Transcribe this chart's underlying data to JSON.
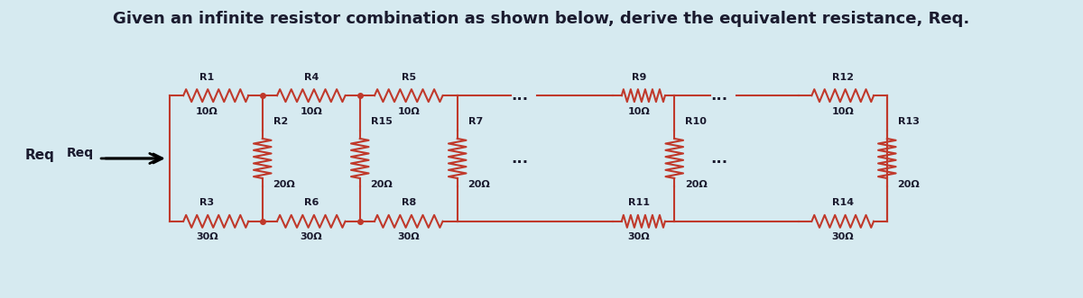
{
  "title": "Given an infinite resistor combination as shown below, derive the equivalent resistance, Req.",
  "title_fontsize": 13,
  "bg_color": "#d6eaf0",
  "wire_color": "#c0392b",
  "wire_color2": "#8b0000",
  "label_color": "#1a1a2e",
  "resistor_color": "#1a1a2e",
  "dots_color": "#1a1a2e",
  "figsize": [
    12.0,
    3.31
  ],
  "dpi": 100,
  "sections": [
    {
      "label_top": "R1",
      "val_top": "10Ω",
      "label_mid": "R2",
      "val_mid": "20Ω",
      "label_bot": "R3",
      "val_bot": "30Ω"
    },
    {
      "label_top": "R4",
      "val_top": "10Ω",
      "label_mid": "R15",
      "val_mid": "20Ω",
      "label_bot": "R6",
      "val_bot": "30Ω"
    },
    {
      "label_top": "R5",
      "val_top": "10Ω",
      "label_mid": "R7",
      "val_mid": "20Ω",
      "label_bot": "R8",
      "val_bot": "30Ω"
    },
    {
      "label_top": "R9",
      "val_top": "10Ω",
      "label_mid": "R10",
      "val_mid": "20Ω",
      "label_bot": "R11",
      "val_bot": "30Ω"
    },
    {
      "label_top": "R12",
      "val_top": "10Ω",
      "label_mid": "R13",
      "val_mid": "20Ω",
      "label_bot": "R14",
      "val_bot": "30Ω"
    }
  ],
  "dots_after": [
    2,
    3
  ],
  "req_label": "Req"
}
